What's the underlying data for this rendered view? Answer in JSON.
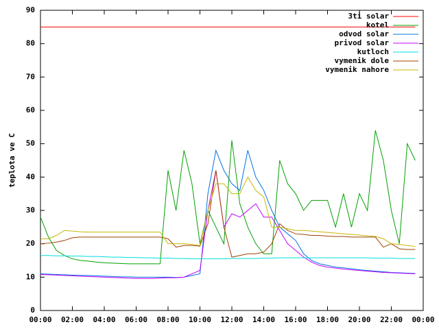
{
  "chart_data": {
    "type": "line",
    "y_label": "teplota ve C",
    "legend": "top-right",
    "grid": false,
    "x": [
      0,
      0.5,
      1,
      1.5,
      2,
      2.5,
      3,
      3.5,
      4,
      4.5,
      5,
      5.5,
      6,
      6.5,
      7,
      7.5,
      8,
      8.5,
      9,
      9.5,
      10,
      10.5,
      11,
      11.5,
      12,
      12.5,
      13,
      13.5,
      14,
      14.5,
      15,
      15.5,
      16,
      16.5,
      17,
      17.5,
      18,
      18.5,
      19,
      19.5,
      20,
      20.5,
      21,
      21.5,
      22,
      22.5,
      23,
      23.5
    ],
    "xlim": [
      0,
      24
    ],
    "xticks": [
      {
        "value": 0,
        "label": "00:00"
      },
      {
        "value": 2,
        "label": "02:00"
      },
      {
        "value": 4,
        "label": "04:00"
      },
      {
        "value": 6,
        "label": "06:00"
      },
      {
        "value": 8,
        "label": "08:00"
      },
      {
        "value": 10,
        "label": "10:00"
      },
      {
        "value": 12,
        "label": "12:00"
      },
      {
        "value": 14,
        "label": "14:00"
      },
      {
        "value": 16,
        "label": "16:00"
      },
      {
        "value": 18,
        "label": "18:00"
      },
      {
        "value": 20,
        "label": "20:00"
      },
      {
        "value": 22,
        "label": "22:00"
      },
      {
        "value": 24,
        "label": "00:00"
      }
    ],
    "ylim": [
      0,
      90
    ],
    "yticks": [
      0,
      10,
      20,
      30,
      40,
      50,
      60,
      70,
      80,
      90
    ],
    "series": [
      {
        "name": "3ti solar",
        "color": "#ff0000",
        "values": [
          85,
          85,
          85,
          85,
          85,
          85,
          85,
          85,
          85,
          85,
          85,
          85,
          85,
          85,
          85,
          85,
          85,
          85,
          85,
          85,
          85,
          85,
          85,
          85,
          85,
          85,
          85,
          85,
          85,
          85,
          85,
          85,
          85,
          85,
          85,
          85,
          85,
          85,
          85,
          85,
          85,
          85,
          85,
          85,
          85,
          85,
          85,
          85
        ]
      },
      {
        "name": "kotel",
        "color": "#00a000",
        "values": [
          28,
          22,
          18,
          16.5,
          15.5,
          15,
          14.8,
          14.5,
          14.3,
          14.2,
          14.1,
          14,
          14,
          14,
          14,
          14,
          42,
          30,
          48,
          38,
          20,
          30,
          25,
          20,
          51,
          32,
          25,
          20,
          17,
          17,
          45,
          38,
          35,
          30,
          33,
          33,
          33,
          25,
          35,
          25,
          35,
          30,
          54,
          45,
          30,
          20,
          50,
          45
        ]
      },
      {
        "name": "odvod solar",
        "color": "#0070e0",
        "values": [
          11,
          10.9,
          10.8,
          10.7,
          10.6,
          10.5,
          10.5,
          10.4,
          10.3,
          10.2,
          10.1,
          10.1,
          10,
          10,
          10,
          10,
          10,
          9.9,
          10,
          10.5,
          11,
          35,
          48,
          42,
          38,
          36,
          48,
          40,
          36,
          30,
          25,
          23,
          21,
          17,
          15,
          14,
          13.5,
          13,
          12.8,
          12.5,
          12.2,
          12,
          11.8,
          11.6,
          11.4,
          11.3,
          11.2,
          11.1
        ]
      },
      {
        "name": "privod solar",
        "color": "#c000ff",
        "values": [
          10.8,
          10.7,
          10.6,
          10.5,
          10.4,
          10.3,
          10.2,
          10.1,
          10,
          9.9,
          9.8,
          9.7,
          9.6,
          9.6,
          9.6,
          9.7,
          9.8,
          9.8,
          10,
          11,
          12,
          30,
          42,
          25,
          29,
          28,
          30,
          32,
          28,
          28,
          24,
          20,
          18,
          16,
          14.5,
          13.5,
          13,
          12.7,
          12.4,
          12.2,
          12,
          11.8,
          11.6,
          11.4,
          11.3,
          11.2,
          11.1,
          11
        ]
      },
      {
        "name": "kutloch",
        "color": "#00dddd",
        "values": [
          16.5,
          16.5,
          16.4,
          16.4,
          16.3,
          16.3,
          16.2,
          16.2,
          16.1,
          16,
          16,
          15.9,
          15.9,
          15.8,
          15.8,
          15.7,
          15.7,
          15.6,
          15.6,
          15.5,
          15.5,
          15.5,
          15.5,
          15.5,
          15.6,
          15.6,
          15.6,
          15.6,
          15.7,
          15.7,
          15.8,
          15.8,
          15.8,
          15.8,
          15.8,
          15.8,
          15.8,
          15.8,
          15.8,
          15.8,
          15.8,
          15.8,
          15.7,
          15.7,
          15.7,
          15.6,
          15.6,
          15.6
        ]
      },
      {
        "name": "vymenik dole",
        "color": "#a04000",
        "values": [
          20,
          20.2,
          20.5,
          21,
          21.8,
          22,
          22,
          22,
          22,
          22,
          22,
          22,
          22,
          22,
          22,
          22,
          21.5,
          19,
          19.5,
          19.5,
          19.3,
          26,
          42,
          25,
          16,
          16.5,
          17,
          17,
          17.5,
          20,
          26,
          24,
          23,
          22.8,
          22.5,
          22.5,
          22.3,
          22.2,
          22.2,
          22,
          22,
          22,
          22,
          19,
          20,
          18.5,
          18.3,
          18.3
        ]
      },
      {
        "name": "vymenik nahore",
        "color": "#c8b400",
        "values": [
          21.5,
          21.5,
          22.5,
          24,
          23.8,
          23.6,
          23.5,
          23.5,
          23.5,
          23.5,
          23.5,
          23.5,
          23.5,
          23.5,
          23.5,
          23.5,
          20,
          20,
          20,
          19.8,
          19.5,
          30,
          38,
          38,
          35,
          35,
          40,
          36,
          34,
          25,
          25,
          24.5,
          24,
          24,
          23.8,
          23.6,
          23.4,
          23.2,
          23,
          22.8,
          22.6,
          22.4,
          22.2,
          21.5,
          20,
          19.8,
          19.5,
          19.2
        ]
      }
    ]
  }
}
